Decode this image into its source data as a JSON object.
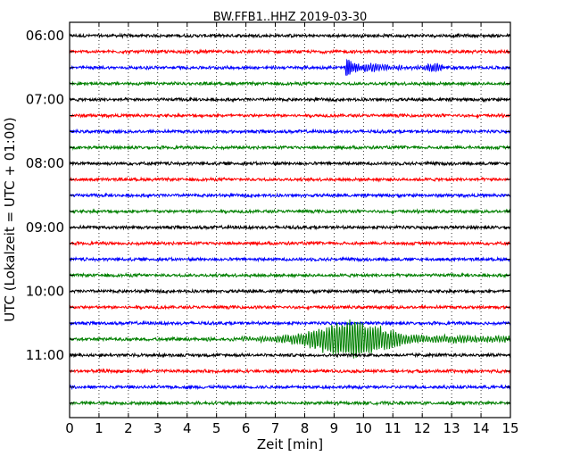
{
  "chart_data": {
    "type": "line",
    "title": "BW.FFB1..HHZ 2019-03-30",
    "xlabel": "Zeit  [min]",
    "ylabel": "UTC (Lokalzeit = UTC + 01:00)",
    "xlim": [
      0,
      15
    ],
    "x_ticks": [
      "0",
      "1",
      "2",
      "3",
      "4",
      "5",
      "6",
      "7",
      "8",
      "9",
      "10",
      "11",
      "12",
      "13",
      "14",
      "15"
    ],
    "y_tick_labels": [
      "06:00",
      "07:00",
      "08:00",
      "09:00",
      "10:00",
      "11:00"
    ],
    "trace_interval_minutes": 15,
    "start_time": "06:00",
    "end_time": "12:00",
    "grid": "vertical-dotted",
    "trace_colors": [
      "#000000",
      "#ff0000",
      "#0000ff",
      "#008000"
    ],
    "events": [
      {
        "trace_start": "06:30",
        "onset_min": 9.4,
        "peak_amplitude": "large",
        "color": "#0000ff"
      },
      {
        "trace_start": "10:45",
        "onset_min": 7.0,
        "peak_amplitude": "very large",
        "color": "#008000"
      }
    ]
  }
}
